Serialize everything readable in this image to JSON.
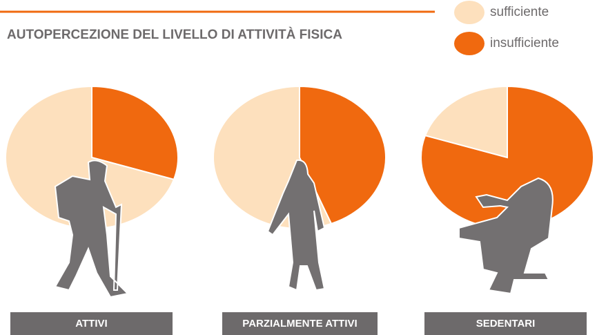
{
  "title": "AUTOPERCEZIONE DEL LIVELLO DI ATTIVITÀ FISICA",
  "chart_data": [
    {
      "type": "pie",
      "title": "ATTIVI",
      "categories": [
        "sufficiente",
        "insufficiente"
      ],
      "values": [
        70,
        30
      ],
      "colors": [
        "#fde0bd",
        "#f0690f"
      ]
    },
    {
      "type": "pie",
      "title": "PARZIALMENTE ATTIVI",
      "categories": [
        "sufficiente",
        "insufficiente"
      ],
      "values": [
        56,
        44
      ],
      "colors": [
        "#fde0bd",
        "#f0690f"
      ]
    },
    {
      "type": "pie",
      "title": "SEDENTARI",
      "categories": [
        "sufficiente",
        "insufficiente"
      ],
      "values": [
        20,
        80
      ],
      "colors": [
        "#fde0bd",
        "#f0690f"
      ]
    }
  ]
}
